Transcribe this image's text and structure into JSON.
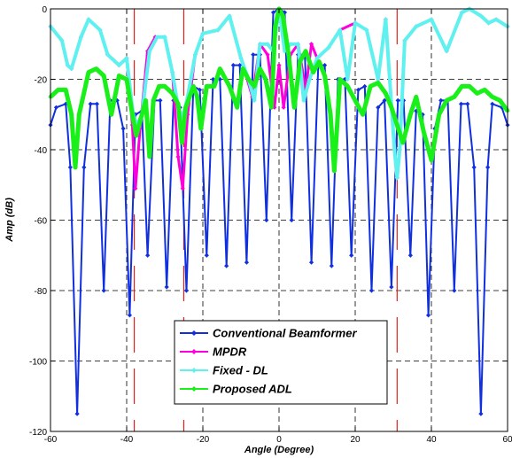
{
  "chart_data": {
    "type": "line",
    "title": "",
    "xlabel": "Angle (Degree)",
    "ylabel": "Amp (dB)",
    "xlim": [
      -60,
      60
    ],
    "ylim": [
      -120,
      0
    ],
    "x_ticks": [
      -60,
      -40,
      -20,
      0,
      20,
      40,
      60
    ],
    "y_ticks": [
      -120,
      -100,
      -80,
      -60,
      -40,
      -20,
      0
    ],
    "x_tick_labels": [
      "-60",
      "-40",
      "-20",
      "0",
      "20",
      "40",
      "60"
    ],
    "y_tick_labels": [
      "-120",
      "-100",
      "-80",
      "-60",
      "-40",
      "-20",
      "0"
    ],
    "grid": true,
    "legend_position": "bottom-center",
    "reference_lines": {
      "color": "#e0201a",
      "x": [
        -38,
        -25,
        31
      ],
      "note": ""
    },
    "series": [
      {
        "name": "Conventional Beamformer",
        "color": "#1030e0",
        "marker": "diamond",
        "x": [
          -60,
          -58.5,
          -56,
          -54.8,
          -53,
          -51.2,
          -49.5,
          -47.8,
          -46,
          -44.3,
          -42.5,
          -40.9,
          -39.2,
          -37.7,
          -36,
          -34.5,
          -32.7,
          -31.2,
          -29.5,
          -27.7,
          -26,
          -24.3,
          -22.5,
          -20.8,
          -19,
          -17.3,
          -15.5,
          -13.8,
          -12,
          -10.3,
          -8.5,
          -6.8,
          -5,
          -3.3,
          -1.5,
          0,
          1.5,
          3.3,
          5,
          6.8,
          8.5,
          10.3,
          12,
          13.8,
          15.5,
          17.3,
          19,
          20.8,
          22.5,
          24.3,
          26,
          27.7,
          29.5,
          31.2,
          32.7,
          34.5,
          36,
          37.7,
          39.2,
          40.9,
          42.5,
          44.3,
          46,
          47.8,
          49.5,
          51.2,
          53,
          54.8,
          56,
          58.5,
          60
        ],
        "y": [
          -33,
          -28,
          -27,
          -45,
          -115,
          -45,
          -27,
          -27,
          -80,
          -26,
          -26,
          -34,
          -87,
          -30,
          -29,
          -70,
          -26,
          -26,
          -79,
          -26,
          -28,
          -80,
          -22,
          -23,
          -70,
          -20,
          -20,
          -73,
          -16,
          -16,
          -72,
          -13,
          -13,
          -60,
          -1,
          0,
          -1,
          -60,
          -13,
          -13,
          -72,
          -16,
          -16,
          -73,
          -20,
          -20,
          -70,
          -23,
          -22,
          -80,
          -28,
          -26,
          -79,
          -26,
          -26,
          -70,
          -29,
          -30,
          -87,
          -34,
          -26,
          -26,
          -80,
          -27,
          -27,
          -45,
          -115,
          -45,
          -27,
          -28,
          -33
        ]
      },
      {
        "name": "MPDR",
        "color": "#ff00dd",
        "marker": "diamond",
        "x": [
          -60,
          -57,
          -55.5,
          -54.5,
          -52,
          -50,
          -47,
          -45,
          -42,
          -40,
          -38.5,
          -37.7,
          -36.5,
          -34.5,
          -32.5,
          -30,
          -28,
          -26.5,
          -25.3,
          -24,
          -22,
          -20,
          -16,
          -13,
          -10,
          -7,
          -5,
          -3,
          -1.2,
          0,
          1.2,
          3,
          5,
          7,
          8.5,
          10,
          13,
          16,
          20,
          23,
          26,
          28,
          30.3,
          31,
          31.7,
          33,
          36,
          40,
          44,
          48,
          50,
          53,
          55,
          57,
          60
        ],
        "y": [
          -5,
          -9,
          -16,
          -17,
          -8,
          -3,
          -6,
          -13,
          -16,
          -14,
          -33,
          -51,
          -34,
          -12,
          -8,
          -8,
          -18,
          -42,
          -51,
          -30,
          -13,
          -7,
          -6,
          -2,
          -14,
          -25,
          -10,
          -13,
          -28,
          -16,
          -28,
          -13,
          -10,
          -23,
          -10,
          -14,
          -11,
          -6,
          -4,
          -6,
          -20,
          -3,
          -40,
          -48,
          -40,
          -9,
          -5,
          -3,
          -12,
          -1,
          0,
          -2,
          -4,
          -3,
          -5
        ]
      },
      {
        "name": "Fixed - DL",
        "color": "#5ff0f0",
        "marker": "diamond",
        "x": [
          -60,
          -57,
          -55.5,
          -54.5,
          -52,
          -50,
          -47,
          -45,
          -42,
          -40,
          -38.3,
          -37.2,
          -36,
          -34,
          -32,
          -30,
          -28,
          -26.5,
          -25.3,
          -24,
          -22,
          -20,
          -16,
          -13,
          -10,
          -8,
          -6.5,
          -5,
          -3,
          -1.5,
          0,
          1.5,
          3,
          5,
          6.5,
          8,
          10,
          13,
          16,
          18,
          20,
          23,
          26,
          28,
          30.3,
          31,
          31.7,
          33,
          36,
          40,
          44,
          48,
          50,
          53,
          55,
          57,
          60
        ],
        "y": [
          -5,
          -9,
          -16,
          -17,
          -8,
          -3,
          -6,
          -13,
          -16,
          -14,
          -30,
          -33,
          -30,
          -12,
          -8,
          -8,
          -18,
          -28,
          -31,
          -25,
          -13,
          -7,
          -6,
          -2,
          -14,
          -20,
          -26,
          -10,
          -10,
          -12,
          0,
          -12,
          -10,
          -10,
          -26,
          -20,
          -14,
          -11,
          -6,
          -20,
          -4,
          -6,
          -20,
          -3,
          -40,
          -48,
          -40,
          -9,
          -5,
          -3,
          -12,
          -1,
          0,
          -2,
          -4,
          -3,
          -5
        ]
      },
      {
        "name": "Proposed ADL",
        "color": "#19f019",
        "marker": "diamond",
        "x": [
          -60,
          -58,
          -56,
          -54.5,
          -53.5,
          -52.5,
          -50,
          -48,
          -46,
          -44,
          -42,
          -40,
          -38.5,
          -37.5,
          -36.5,
          -35,
          -34,
          -33,
          -31.5,
          -30,
          -28,
          -26.5,
          -25.5,
          -24.5,
          -22.5,
          -21.5,
          -20.5,
          -19,
          -17,
          -15.5,
          -13,
          -11,
          -9.5,
          -8,
          -6.5,
          -5,
          -3.5,
          -2,
          -1,
          0,
          1,
          2.5,
          4,
          5.5,
          7,
          9,
          10.5,
          12,
          13.5,
          14.5,
          16,
          18,
          20,
          22,
          24,
          26,
          28,
          29.5,
          31,
          32.5,
          34.5,
          36,
          38,
          40,
          42,
          44,
          46,
          48,
          50,
          52,
          54,
          56,
          58,
          60
        ],
        "y": [
          -25,
          -23,
          -23,
          -30,
          -45,
          -30,
          -18,
          -17,
          -19,
          -30,
          -19,
          -20,
          -30,
          -36,
          -32,
          -26,
          -42,
          -26,
          -22,
          -22,
          -24,
          -27,
          -38,
          -28,
          -22,
          -25,
          -34,
          -22,
          -22,
          -17,
          -22,
          -28,
          -17,
          -20,
          -22,
          -17,
          -20,
          -28,
          -5,
          0,
          -2,
          -13,
          -28,
          -15,
          -12,
          -18,
          -15,
          -19,
          -30,
          -46,
          -20,
          -22,
          -26,
          -30,
          -22,
          -21,
          -24,
          -28,
          -33,
          -38,
          -30,
          -25,
          -35,
          -43,
          -30,
          -26,
          -25,
          -22,
          -22,
          -24,
          -23,
          -25,
          -26,
          -29
        ]
      }
    ]
  }
}
